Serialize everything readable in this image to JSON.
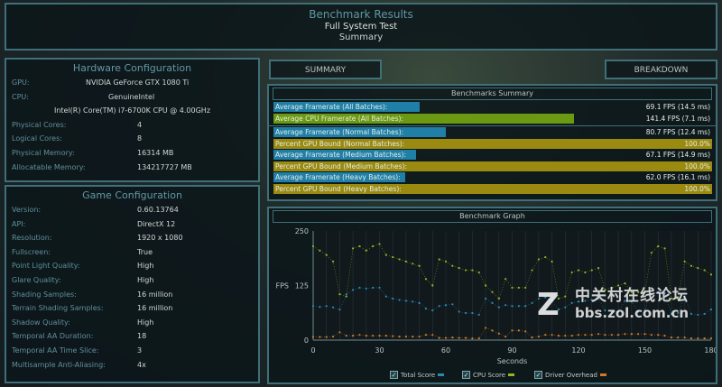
{
  "header": {
    "title": "Benchmark Results",
    "subtitle": "Full System Test",
    "section": "Summary"
  },
  "tabs": {
    "summary": "SUMMARY",
    "breakdown": "BREAKDOWN"
  },
  "hardware": {
    "title": "Hardware Configuration",
    "gpu_label": "GPU:",
    "gpu": "NVIDIA GeForce GTX 1080 Ti",
    "cpu_label": "CPU:",
    "cpu_vendor": "GenuineIntel",
    "cpu_name": "Intel(R) Core(TM) i7-6700K CPU @ 4.00GHz",
    "rows": [
      {
        "k": "Physical Cores:",
        "v": "4"
      },
      {
        "k": "Logical Cores:",
        "v": "8"
      },
      {
        "k": "Physical Memory:",
        "v": "16314  MB"
      },
      {
        "k": "Allocatable Memory:",
        "v": "134217727  MB"
      }
    ]
  },
  "game": {
    "title": "Game Configuration",
    "rows": [
      {
        "k": "Version:",
        "v": "0.60.13764"
      },
      {
        "k": "API:",
        "v": "DirectX 12"
      },
      {
        "k": "Resolution:",
        "v": "1920 x 1080"
      },
      {
        "k": "Fullscreen:",
        "v": "True"
      },
      {
        "k": "Point Light Quality:",
        "v": "High"
      },
      {
        "k": "Glare Quality:",
        "v": "High"
      },
      {
        "k": "Shading Samples:",
        "v": "16 million"
      },
      {
        "k": "Terrain Shading Samples:",
        "v": "16 million"
      },
      {
        "k": "Shadow Quality:",
        "v": "High"
      },
      {
        "k": "Temporal AA Duration:",
        "v": "18"
      },
      {
        "k": "Temporal AA Time Slice:",
        "v": "3"
      },
      {
        "k": "Multisample Anti-Aliasing:",
        "v": "4x"
      }
    ]
  },
  "summary": {
    "title": "Benchmarks Summary",
    "colors": {
      "gpu": "#1f7fa6",
      "cpu": "#6b9a12",
      "bound": "#9a8a10"
    },
    "rows": [
      {
        "label": "Average Framerate (All Batches):",
        "value": "69.1 FPS (14.5 ms)",
        "fill_pct": 33.4,
        "kind": "gpu"
      },
      {
        "label": "Average CPU Framerate (All Batches):",
        "value": "141.4 FPS (7.1 ms)",
        "fill_pct": 68.6,
        "kind": "cpu"
      },
      {
        "label": "Average Framerate (Normal Batches):",
        "value": "80.7 FPS (12.4 ms)",
        "fill_pct": 39.2,
        "kind": "gpu"
      },
      {
        "label": "Percent GPU Bound (Normal Batches):",
        "value": "100.0%",
        "fill_pct": 100,
        "kind": "bound"
      },
      {
        "label": "Average Framerate (Medium Batches):",
        "value": "67.1 FPS (14.9 ms)",
        "fill_pct": 32.6,
        "kind": "gpu"
      },
      {
        "label": "Percent GPU Bound (Medium Batches):",
        "value": "100.0%",
        "fill_pct": 100,
        "kind": "bound"
      },
      {
        "label": "Average Framerate (Heavy Batches):",
        "value": "62.0 FPS (16.1 ms)",
        "fill_pct": 30.1,
        "kind": "gpu"
      },
      {
        "label": "Percent GPU Bound (Heavy Batches):",
        "value": "100.0%",
        "fill_pct": 100,
        "kind": "bound"
      }
    ]
  },
  "chart_data": {
    "type": "scatter",
    "title": "Benchmark Graph",
    "xlabel": "Seconds",
    "ylabel": "FPS",
    "xlim": [
      0,
      180
    ],
    "ylim": [
      0,
      250
    ],
    "xticks": [
      "0",
      "30",
      "60",
      "90",
      "120",
      "150",
      "180"
    ],
    "yticks": [
      "0",
      "125",
      "250"
    ],
    "grid": "vertical",
    "x": [
      0,
      3,
      6,
      9,
      12,
      15,
      18,
      21,
      24,
      27,
      30,
      33,
      36,
      39,
      42,
      45,
      48,
      51,
      54,
      57,
      60,
      63,
      66,
      69,
      72,
      75,
      78,
      81,
      84,
      87,
      90,
      93,
      96,
      99,
      102,
      105,
      108,
      111,
      114,
      117,
      120,
      123,
      126,
      129,
      132,
      135,
      138,
      141,
      144,
      147,
      150,
      153,
      156,
      159,
      162,
      165,
      168,
      171,
      174,
      177,
      180
    ],
    "series": [
      {
        "name": "Total Score",
        "color": "#2a8ab5",
        "values": [
          78,
          76,
          78,
          75,
          70,
          105,
          115,
          120,
          118,
          120,
          120,
          100,
          95,
          92,
          90,
          88,
          85,
          72,
          68,
          78,
          80,
          82,
          65,
          62,
          62,
          58,
          95,
          85,
          75,
          80,
          78,
          78,
          78,
          85,
          95,
          98,
          90,
          70,
          75,
          85,
          88,
          90,
          92,
          95,
          68,
          65,
          65,
          90,
          88,
          65,
          68,
          105,
          110,
          108,
          60,
          62,
          100,
          60,
          58,
          60,
          70
        ],
        "checked": true
      },
      {
        "name": "CPU Score",
        "color": "#8fb81e",
        "values": [
          215,
          205,
          195,
          180,
          105,
          100,
          210,
          215,
          205,
          215,
          220,
          195,
          190,
          185,
          180,
          175,
          170,
          140,
          125,
          185,
          180,
          170,
          165,
          160,
          160,
          155,
          125,
          110,
          95,
          140,
          120,
          120,
          120,
          160,
          185,
          190,
          180,
          95,
          100,
          155,
          160,
          155,
          160,
          165,
          115,
          120,
          125,
          130,
          110,
          110,
          110,
          200,
          215,
          210,
          95,
          95,
          180,
          170,
          165,
          160,
          150
        ],
        "checked": true
      },
      {
        "name": "Driver Overhead",
        "color": "#d07a2a",
        "values": [
          7,
          7,
          7,
          8,
          18,
          10,
          10,
          12,
          10,
          10,
          10,
          10,
          9,
          8,
          8,
          8,
          8,
          12,
          12,
          5,
          5,
          6,
          5,
          5,
          4,
          4,
          28,
          22,
          15,
          8,
          22,
          22,
          20,
          6,
          8,
          12,
          12,
          10,
          10,
          10,
          12,
          12,
          12,
          14,
          12,
          12,
          12,
          14,
          14,
          14,
          14,
          12,
          12,
          10,
          6,
          6,
          6,
          4,
          4,
          4,
          4
        ],
        "checked": true
      }
    ]
  },
  "watermark": {
    "line1": "中关村在线论坛",
    "line2": "bbs.zol.com.cn",
    "logo": "Z"
  }
}
